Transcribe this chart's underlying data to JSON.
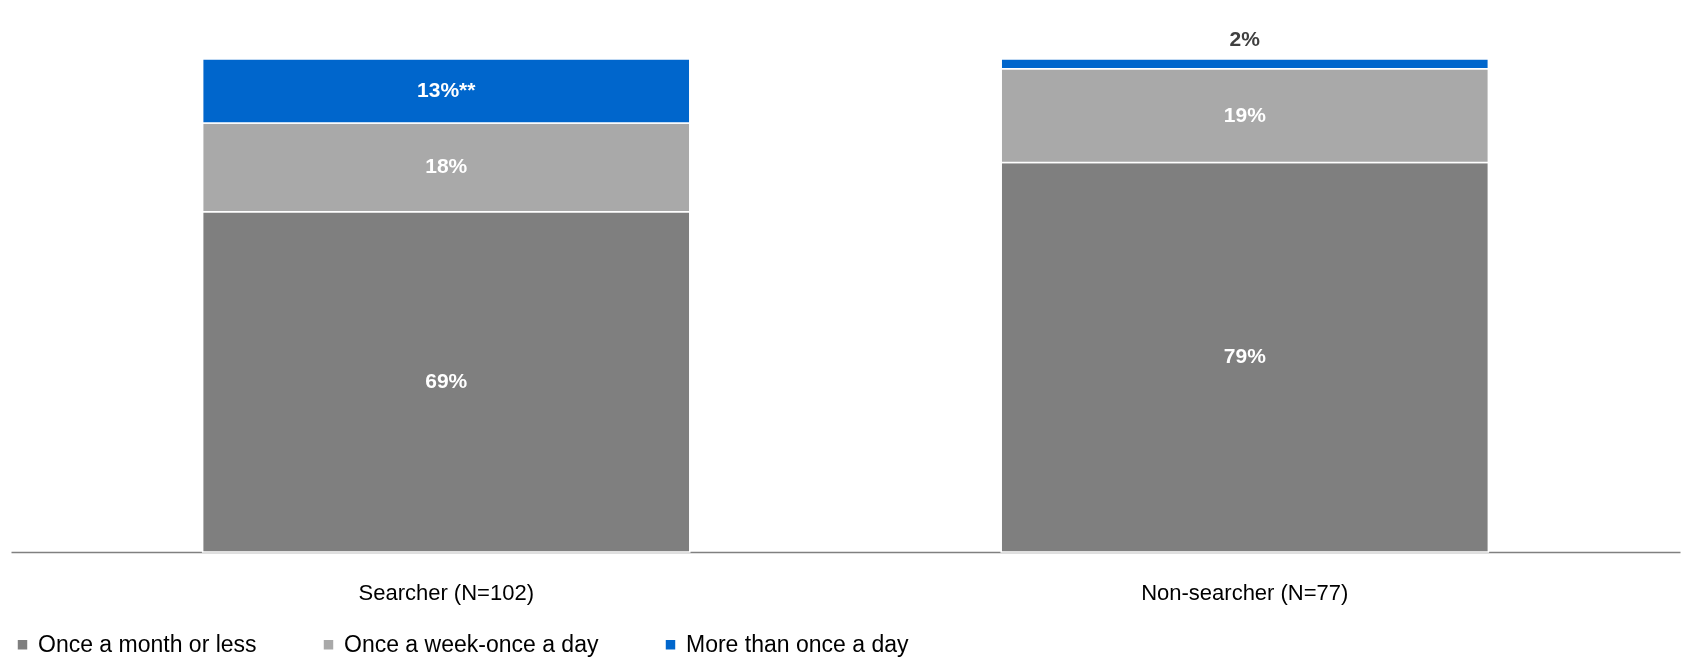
{
  "chart_data": {
    "type": "bar",
    "stacked": true,
    "categories": [
      "Searcher (N=102)",
      "Non-searcher (N=77)"
    ],
    "legend": "bottom",
    "series": [
      {
        "name": "Once a month or less",
        "color": "#7f7f7f",
        "values": [
          69,
          79
        ],
        "value_labels": [
          "69%",
          "79%"
        ]
      },
      {
        "name": "Once a week-once a day",
        "color": "#a9a9a9",
        "values": [
          18,
          19
        ],
        "value_labels": [
          "18%",
          "19%"
        ]
      },
      {
        "name": "More than once a day",
        "color": "#0066cc",
        "values": [
          13,
          2
        ],
        "value_labels": [
          "13%**",
          "2%"
        ]
      }
    ]
  }
}
